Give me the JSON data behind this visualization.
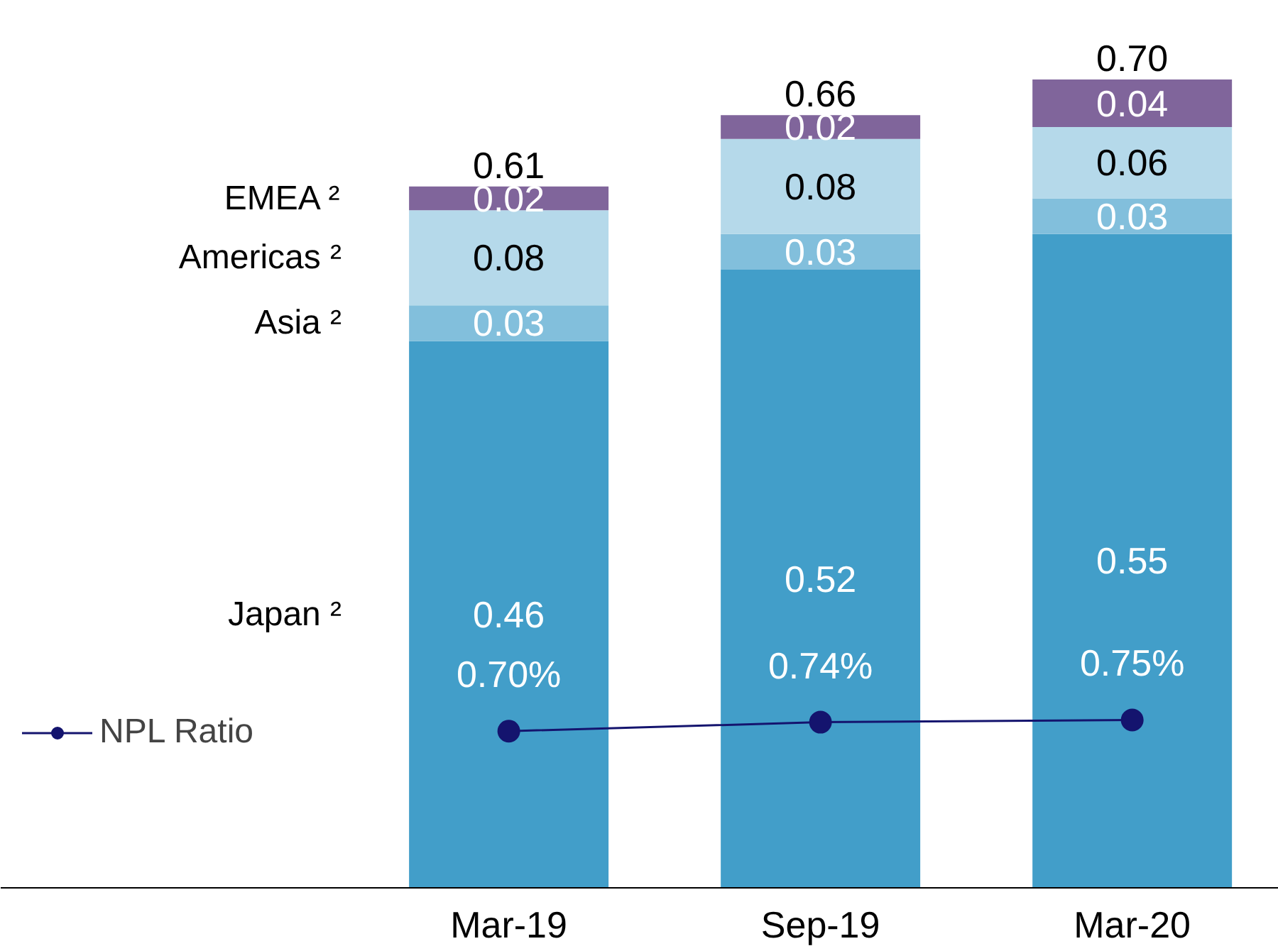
{
  "chart_data": {
    "type": "bar",
    "stacked": true,
    "categories": [
      "Mar-19",
      "Sep-19",
      "Mar-20"
    ],
    "series": [
      {
        "name": "Japan ²",
        "color": "#429ec9",
        "values": [
          0.46,
          0.52,
          0.55
        ]
      },
      {
        "name": "Asia ²",
        "color": "#82bfdc",
        "values": [
          0.03,
          0.03,
          0.03
        ]
      },
      {
        "name": "Americas ²",
        "color": "#b5d9ea",
        "values": [
          0.08,
          0.08,
          0.06
        ]
      },
      {
        "name": "EMEA ²",
        "color": "#80659b",
        "values": [
          0.02,
          0.02,
          0.04
        ]
      },
      {
        "name": "NPL Ratio",
        "type": "line",
        "axis": "y2",
        "color": "#14146e",
        "values": [
          0.7,
          0.74,
          0.75
        ],
        "value_labels": [
          "0.70%",
          "0.74%",
          "0.75%"
        ],
        "marker": "circle"
      }
    ],
    "data_labels": true,
    "totals": [
      "0.61",
      "0.66",
      "0.70"
    ],
    "legend": "left",
    "grid": false,
    "tick_labels": "x"
  }
}
